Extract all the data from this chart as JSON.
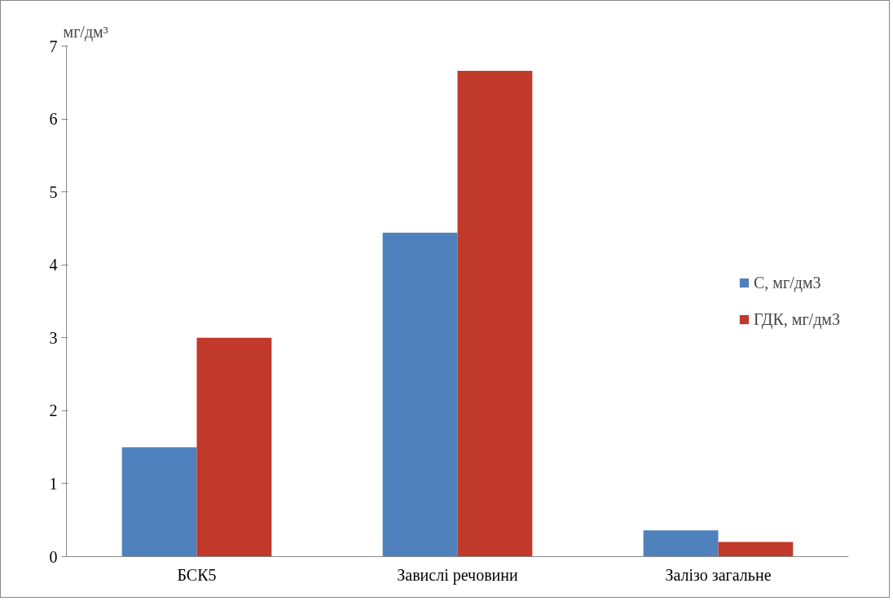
{
  "chart_data": {
    "type": "bar",
    "ylabel": "мг/дм³",
    "categories": [
      "БСК5",
      "Завислі речовини",
      "Залізо загальне"
    ],
    "series": [
      {
        "name": "С, мг/дм3",
        "color": "#4f81bd",
        "values": [
          1.5,
          4.44,
          0.36
        ]
      },
      {
        "name": "ГДК, мг/дм3",
        "color": "#c0392b",
        "values": [
          3.0,
          6.66,
          0.2
        ]
      }
    ],
    "ylim": [
      0,
      7
    ],
    "yticks": [
      0,
      1,
      2,
      3,
      4,
      5,
      6,
      7
    ],
    "grid": false,
    "legend": "right"
  }
}
